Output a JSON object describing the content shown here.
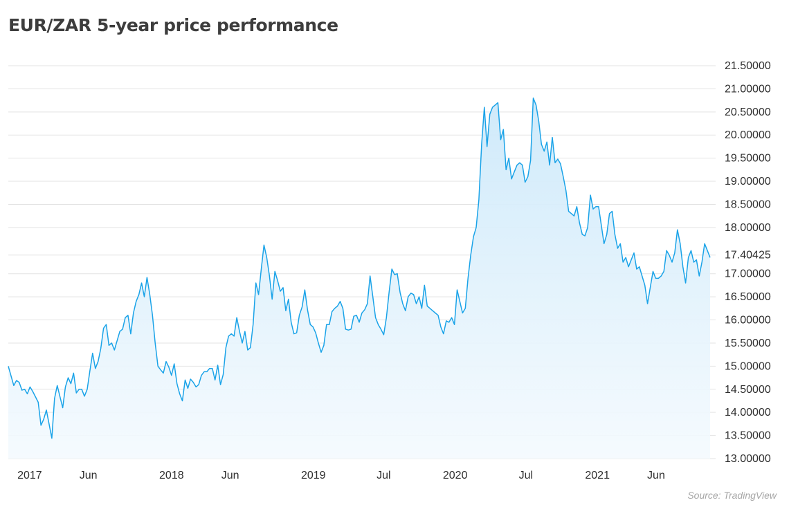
{
  "title": "EUR/ZAR 5-year price performance",
  "source": "Source: TradingView",
  "colors": {
    "line": "#1aa3e8",
    "fill_top": "#cde9fa",
    "fill_bottom": "#f4fafe",
    "grid": "#e3e3e3",
    "axis_text": "#2e2e2e"
  },
  "chart_data": {
    "type": "area",
    "title": "EUR/ZAR 5-year price performance",
    "xlabel": "",
    "ylabel": "",
    "ylim": [
      13.0,
      21.6
    ],
    "grid": true,
    "y_ticks": [
      "21.50000",
      "21.00000",
      "20.50000",
      "20.00000",
      "19.50000",
      "19.00000",
      "18.50000",
      "18.00000",
      "17.40425",
      "17.00000",
      "16.50000",
      "16.00000",
      "15.50000",
      "15.00000",
      "14.50000",
      "14.00000",
      "13.50000",
      "13.00000"
    ],
    "y_tick_values": [
      21.5,
      21.0,
      20.5,
      20.0,
      19.5,
      19.0,
      18.5,
      18.0,
      17.40425,
      17.0,
      16.5,
      16.0,
      15.5,
      15.0,
      14.5,
      14.0,
      13.5,
      13.0
    ],
    "x_ticks": [
      {
        "label": "2017",
        "date": "2017-01-01"
      },
      {
        "label": "Jun",
        "date": "2017-06-01"
      },
      {
        "label": "2018",
        "date": "2018-01-01"
      },
      {
        "label": "Jun",
        "date": "2018-06-01"
      },
      {
        "label": "2019",
        "date": "2019-01-01"
      },
      {
        "label": "Jul",
        "date": "2019-07-01"
      },
      {
        "label": "2020",
        "date": "2020-01-01"
      },
      {
        "label": "Jul",
        "date": "2020-07-01"
      },
      {
        "label": "2021",
        "date": "2021-01-01"
      },
      {
        "label": "Jun",
        "date": "2021-06-01"
      }
    ],
    "last_value": 17.40425,
    "series": [
      {
        "points": [
          [
            "2016-11-07",
            15.0
          ],
          [
            "2016-11-21",
            14.58
          ],
          [
            "2016-11-28",
            14.69
          ],
          [
            "2016-12-05",
            14.65
          ],
          [
            "2016-12-12",
            14.48
          ],
          [
            "2016-12-19",
            14.5
          ],
          [
            "2016-12-26",
            14.4
          ],
          [
            "2017-01-02",
            14.55
          ],
          [
            "2017-01-09",
            14.45
          ],
          [
            "2017-01-23",
            14.22
          ],
          [
            "2017-01-30",
            13.72
          ],
          [
            "2017-02-06",
            13.85
          ],
          [
            "2017-02-13",
            14.05
          ],
          [
            "2017-02-27",
            13.44
          ],
          [
            "2017-03-06",
            14.3
          ],
          [
            "2017-03-13",
            14.58
          ],
          [
            "2017-03-27",
            14.1
          ],
          [
            "2017-04-03",
            14.55
          ],
          [
            "2017-04-10",
            14.75
          ],
          [
            "2017-04-17",
            14.62
          ],
          [
            "2017-04-24",
            14.85
          ],
          [
            "2017-05-01",
            14.42
          ],
          [
            "2017-05-08",
            14.5
          ],
          [
            "2017-05-15",
            14.5
          ],
          [
            "2017-05-22",
            14.35
          ],
          [
            "2017-05-29",
            14.5
          ],
          [
            "2017-06-05",
            14.9
          ],
          [
            "2017-06-12",
            15.28
          ],
          [
            "2017-06-19",
            14.95
          ],
          [
            "2017-06-26",
            15.1
          ],
          [
            "2017-07-03",
            15.38
          ],
          [
            "2017-07-10",
            15.82
          ],
          [
            "2017-07-17",
            15.9
          ],
          [
            "2017-07-24",
            15.45
          ],
          [
            "2017-07-31",
            15.5
          ],
          [
            "2017-08-07",
            15.35
          ],
          [
            "2017-08-14",
            15.55
          ],
          [
            "2017-08-21",
            15.75
          ],
          [
            "2017-08-28",
            15.8
          ],
          [
            "2017-09-04",
            16.05
          ],
          [
            "2017-09-11",
            16.1
          ],
          [
            "2017-09-18",
            15.7
          ],
          [
            "2017-09-25",
            16.15
          ],
          [
            "2017-10-02",
            16.4
          ],
          [
            "2017-10-09",
            16.55
          ],
          [
            "2017-10-16",
            16.8
          ],
          [
            "2017-10-23",
            16.5
          ],
          [
            "2017-10-30",
            16.92
          ],
          [
            "2017-11-06",
            16.55
          ],
          [
            "2017-11-13",
            16.1
          ],
          [
            "2017-11-20",
            15.5
          ],
          [
            "2017-11-27",
            15.0
          ],
          [
            "2017-12-04",
            14.92
          ],
          [
            "2017-12-11",
            14.85
          ],
          [
            "2017-12-18",
            15.1
          ],
          [
            "2017-12-25",
            14.98
          ],
          [
            "2018-01-01",
            14.8
          ],
          [
            "2018-01-08",
            15.05
          ],
          [
            "2018-01-15",
            14.62
          ],
          [
            "2018-01-22",
            14.4
          ],
          [
            "2018-01-29",
            14.25
          ],
          [
            "2018-02-05",
            14.7
          ],
          [
            "2018-02-12",
            14.52
          ],
          [
            "2018-02-19",
            14.72
          ],
          [
            "2018-02-26",
            14.65
          ],
          [
            "2018-03-05",
            14.55
          ],
          [
            "2018-03-12",
            14.6
          ],
          [
            "2018-03-19",
            14.8
          ],
          [
            "2018-03-26",
            14.88
          ],
          [
            "2018-04-02",
            14.88
          ],
          [
            "2018-04-09",
            14.95
          ],
          [
            "2018-04-16",
            14.95
          ],
          [
            "2018-04-23",
            14.7
          ],
          [
            "2018-04-30",
            15.02
          ],
          [
            "2018-05-07",
            14.6
          ],
          [
            "2018-05-14",
            14.82
          ],
          [
            "2018-05-21",
            15.4
          ],
          [
            "2018-05-28",
            15.65
          ],
          [
            "2018-06-04",
            15.7
          ],
          [
            "2018-06-11",
            15.65
          ],
          [
            "2018-06-18",
            16.05
          ],
          [
            "2018-06-25",
            15.75
          ],
          [
            "2018-07-02",
            15.5
          ],
          [
            "2018-07-09",
            15.75
          ],
          [
            "2018-07-16",
            15.35
          ],
          [
            "2018-07-23",
            15.4
          ],
          [
            "2018-07-30",
            15.9
          ],
          [
            "2018-08-06",
            16.8
          ],
          [
            "2018-08-13",
            16.55
          ],
          [
            "2018-08-20",
            17.1
          ],
          [
            "2018-08-27",
            17.62
          ],
          [
            "2018-09-03",
            17.35
          ],
          [
            "2018-09-10",
            16.95
          ],
          [
            "2018-09-17",
            16.45
          ],
          [
            "2018-09-24",
            17.05
          ],
          [
            "2018-10-01",
            16.85
          ],
          [
            "2018-10-08",
            16.62
          ],
          [
            "2018-10-15",
            16.7
          ],
          [
            "2018-10-22",
            16.2
          ],
          [
            "2018-10-29",
            16.45
          ],
          [
            "2018-11-05",
            15.95
          ],
          [
            "2018-11-12",
            15.7
          ],
          [
            "2018-11-19",
            15.72
          ],
          [
            "2018-11-26",
            16.1
          ],
          [
            "2018-12-03",
            16.28
          ],
          [
            "2018-12-10",
            16.65
          ],
          [
            "2018-12-17",
            16.22
          ],
          [
            "2018-12-24",
            15.9
          ],
          [
            "2018-12-31",
            15.85
          ],
          [
            "2019-01-07",
            15.72
          ],
          [
            "2019-01-14",
            15.5
          ],
          [
            "2019-01-21",
            15.3
          ],
          [
            "2019-01-28",
            15.45
          ],
          [
            "2019-02-04",
            15.9
          ],
          [
            "2019-02-11",
            15.9
          ],
          [
            "2019-02-18",
            16.18
          ],
          [
            "2019-02-25",
            16.25
          ],
          [
            "2019-03-04",
            16.3
          ],
          [
            "2019-03-11",
            16.4
          ],
          [
            "2019-03-18",
            16.25
          ],
          [
            "2019-03-25",
            15.8
          ],
          [
            "2019-04-01",
            15.78
          ],
          [
            "2019-04-08",
            15.8
          ],
          [
            "2019-04-15",
            16.08
          ],
          [
            "2019-04-22",
            16.1
          ],
          [
            "2019-04-29",
            15.95
          ],
          [
            "2019-05-06",
            16.15
          ],
          [
            "2019-05-13",
            16.22
          ],
          [
            "2019-05-20",
            16.35
          ],
          [
            "2019-05-27",
            16.95
          ],
          [
            "2019-06-03",
            16.5
          ],
          [
            "2019-06-10",
            16.05
          ],
          [
            "2019-06-17",
            15.9
          ],
          [
            "2019-06-24",
            15.8
          ],
          [
            "2019-07-01",
            15.68
          ],
          [
            "2019-07-08",
            16.05
          ],
          [
            "2019-07-15",
            16.6
          ],
          [
            "2019-07-22",
            17.1
          ],
          [
            "2019-07-29",
            16.98
          ],
          [
            "2019-08-05",
            17.0
          ],
          [
            "2019-08-12",
            16.6
          ],
          [
            "2019-08-19",
            16.35
          ],
          [
            "2019-08-26",
            16.2
          ],
          [
            "2019-09-02",
            16.5
          ],
          [
            "2019-09-09",
            16.58
          ],
          [
            "2019-09-16",
            16.55
          ],
          [
            "2019-09-23",
            16.35
          ],
          [
            "2019-09-30",
            16.5
          ],
          [
            "2019-10-07",
            16.25
          ],
          [
            "2019-10-14",
            16.75
          ],
          [
            "2019-10-21",
            16.3
          ],
          [
            "2019-10-28",
            16.25
          ],
          [
            "2019-11-04",
            16.2
          ],
          [
            "2019-11-11",
            16.15
          ],
          [
            "2019-11-18",
            16.1
          ],
          [
            "2019-11-25",
            15.85
          ],
          [
            "2019-12-02",
            15.7
          ],
          [
            "2019-12-09",
            15.98
          ],
          [
            "2019-12-16",
            15.95
          ],
          [
            "2019-12-23",
            16.05
          ],
          [
            "2019-12-30",
            15.9
          ],
          [
            "2020-01-06",
            16.65
          ],
          [
            "2020-01-13",
            16.4
          ],
          [
            "2020-01-20",
            16.15
          ],
          [
            "2020-01-27",
            16.25
          ],
          [
            "2020-02-03",
            16.9
          ],
          [
            "2020-02-10",
            17.4
          ],
          [
            "2020-02-17",
            17.8
          ],
          [
            "2020-02-24",
            18.0
          ],
          [
            "2020-03-02",
            18.6
          ],
          [
            "2020-03-09",
            19.8
          ],
          [
            "2020-03-16",
            20.6
          ],
          [
            "2020-03-23",
            19.75
          ],
          [
            "2020-03-30",
            20.45
          ],
          [
            "2020-04-06",
            20.6
          ],
          [
            "2020-04-13",
            20.65
          ],
          [
            "2020-04-20",
            20.7
          ],
          [
            "2020-04-27",
            19.9
          ],
          [
            "2020-05-04",
            20.12
          ],
          [
            "2020-05-11",
            19.25
          ],
          [
            "2020-05-18",
            19.5
          ],
          [
            "2020-05-25",
            19.05
          ],
          [
            "2020-06-01",
            19.2
          ],
          [
            "2020-06-08",
            19.35
          ],
          [
            "2020-06-15",
            19.4
          ],
          [
            "2020-06-22",
            19.35
          ],
          [
            "2020-06-29",
            18.98
          ],
          [
            "2020-07-06",
            19.1
          ],
          [
            "2020-07-13",
            19.45
          ],
          [
            "2020-07-20",
            20.8
          ],
          [
            "2020-07-27",
            20.65
          ],
          [
            "2020-08-03",
            20.3
          ],
          [
            "2020-08-10",
            19.8
          ],
          [
            "2020-08-17",
            19.65
          ],
          [
            "2020-08-24",
            19.85
          ],
          [
            "2020-08-31",
            19.35
          ],
          [
            "2020-09-07",
            19.95
          ],
          [
            "2020-09-14",
            19.4
          ],
          [
            "2020-09-21",
            19.48
          ],
          [
            "2020-09-28",
            19.38
          ],
          [
            "2020-10-05",
            19.1
          ],
          [
            "2020-10-12",
            18.8
          ],
          [
            "2020-10-19",
            18.35
          ],
          [
            "2020-10-26",
            18.3
          ],
          [
            "2020-11-02",
            18.25
          ],
          [
            "2020-11-09",
            18.45
          ],
          [
            "2020-11-16",
            18.1
          ],
          [
            "2020-11-23",
            17.85
          ],
          [
            "2020-11-30",
            17.82
          ],
          [
            "2020-12-07",
            18.0
          ],
          [
            "2020-12-14",
            18.7
          ],
          [
            "2020-12-21",
            18.4
          ],
          [
            "2020-12-28",
            18.45
          ],
          [
            "2021-01-04",
            18.45
          ],
          [
            "2021-01-11",
            18.05
          ],
          [
            "2021-01-18",
            17.65
          ],
          [
            "2021-01-25",
            17.85
          ],
          [
            "2021-02-01",
            18.3
          ],
          [
            "2021-02-08",
            18.35
          ],
          [
            "2021-02-15",
            17.85
          ],
          [
            "2021-02-22",
            17.55
          ],
          [
            "2021-03-01",
            17.65
          ],
          [
            "2021-03-08",
            17.25
          ],
          [
            "2021-03-15",
            17.35
          ],
          [
            "2021-03-22",
            17.15
          ],
          [
            "2021-03-29",
            17.3
          ],
          [
            "2021-04-05",
            17.45
          ],
          [
            "2021-04-12",
            17.1
          ],
          [
            "2021-04-19",
            17.15
          ],
          [
            "2021-04-26",
            16.95
          ],
          [
            "2021-05-03",
            16.75
          ],
          [
            "2021-05-10",
            16.35
          ],
          [
            "2021-05-17",
            16.7
          ],
          [
            "2021-05-24",
            17.05
          ],
          [
            "2021-05-31",
            16.9
          ],
          [
            "2021-06-07",
            16.9
          ],
          [
            "2021-06-14",
            16.95
          ],
          [
            "2021-06-21",
            17.05
          ],
          [
            "2021-06-28",
            17.5
          ],
          [
            "2021-07-05",
            17.4
          ],
          [
            "2021-07-12",
            17.25
          ],
          [
            "2021-07-19",
            17.45
          ],
          [
            "2021-07-26",
            17.95
          ],
          [
            "2021-08-02",
            17.65
          ],
          [
            "2021-08-09",
            17.15
          ],
          [
            "2021-08-16",
            16.8
          ],
          [
            "2021-08-23",
            17.35
          ],
          [
            "2021-08-30",
            17.5
          ],
          [
            "2021-09-06",
            17.25
          ],
          [
            "2021-09-13",
            17.3
          ],
          [
            "2021-09-20",
            16.95
          ],
          [
            "2021-09-27",
            17.25
          ],
          [
            "2021-10-04",
            17.65
          ],
          [
            "2021-10-11",
            17.5
          ],
          [
            "2021-10-18",
            17.35
          ]
        ]
      }
    ]
  }
}
